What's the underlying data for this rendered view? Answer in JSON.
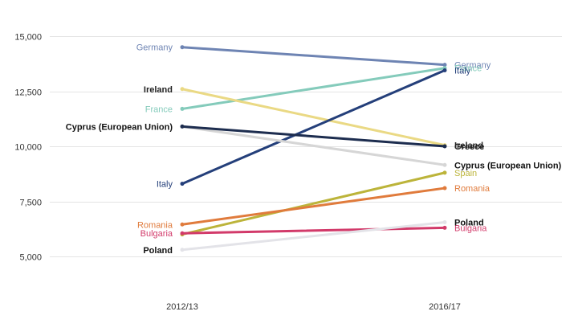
{
  "chart_data": {
    "type": "line",
    "title": "",
    "xlabel": "",
    "ylabel": "",
    "categories": [
      "2012/13",
      "2016/17"
    ],
    "ylim": [
      3000,
      16000
    ],
    "yticks": [
      5000,
      7500,
      10000,
      12500,
      15000
    ],
    "ytick_labels": [
      "5,000",
      "7,500",
      "10,000",
      "12,500",
      "15,000"
    ],
    "grid": true,
    "legend": "none",
    "series": [
      {
        "name": "Germany",
        "values": [
          14500,
          13700
        ],
        "color": "#6e84b3",
        "label_color": "#6e84b3",
        "label_start": true,
        "label_end": true
      },
      {
        "name": "France",
        "values": [
          11700,
          13550
        ],
        "color": "#84cbbb",
        "label_color": "#84cbbb",
        "label_start": true,
        "label_end": true
      },
      {
        "name": "Ireland",
        "values": [
          12600,
          10050
        ],
        "color": "#ead984",
        "label_color": "#222222",
        "label_start": true,
        "label_end": true
      },
      {
        "name": "Italy",
        "values": [
          8300,
          13450
        ],
        "color": "#243f7a",
        "label_color": "#243f7a",
        "label_start": true,
        "label_end": true
      },
      {
        "name": "Cyprus (European Union)",
        "values": [
          10900,
          9150
        ],
        "color": "#d6d6d6",
        "label_color": "#111111",
        "label_start": true,
        "label_end": true
      },
      {
        "name": "Greece",
        "values": [
          10900,
          10000
        ],
        "color": "#1d2d4f",
        "label_color": "#222222",
        "label_start": false,
        "label_end": true
      },
      {
        "name": "Spain",
        "values": [
          6000,
          8800
        ],
        "color": "#bcb43a",
        "label_color": "#bcb43a",
        "label_start": false,
        "label_end": true
      },
      {
        "name": "Romania",
        "values": [
          6450,
          8100
        ],
        "color": "#e07b3c",
        "label_color": "#e07b3c",
        "label_start": true,
        "label_end": true
      },
      {
        "name": "Bulgaria",
        "values": [
          6050,
          6300
        ],
        "color": "#d23a6a",
        "label_color": "#d23a6a",
        "label_start": true,
        "label_end": true
      },
      {
        "name": "Poland",
        "values": [
          5300,
          6550
        ],
        "color": "#e3e3e8",
        "label_color": "#111111",
        "label_start": true,
        "label_end": true
      }
    ]
  }
}
